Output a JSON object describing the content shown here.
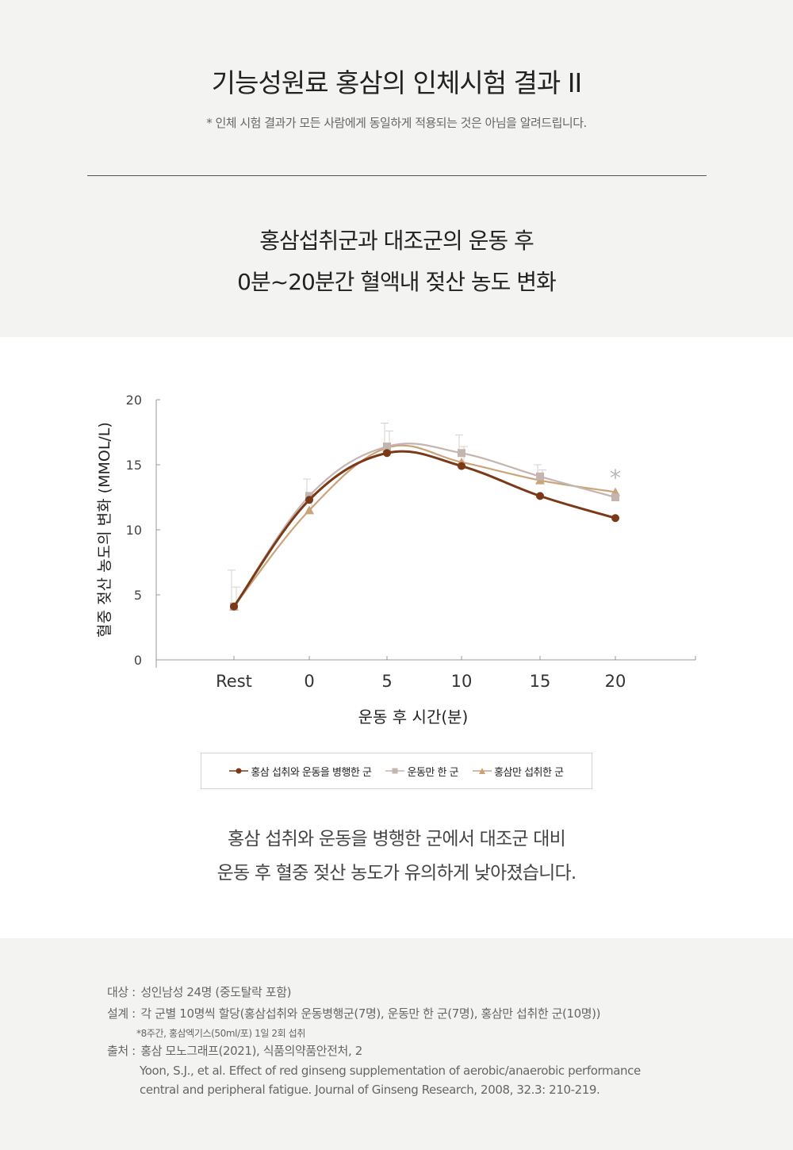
{
  "header": {
    "title": "기능성원료 홍삼의 인체시험 결과 II",
    "disclaimer": "* 인체 시험 결과가 모든 사람에게 동일하게 적용되는 것은 아님을 알려드립니다."
  },
  "subtitle": {
    "line1": "홍삼섭취군과 대조군의 운동 후",
    "line2": "0분~20분간 혈액내 젖산 농도 변화"
  },
  "chart_data": {
    "type": "line",
    "ylabel": "혈중 젖산 농도의 변화 (MMOL/L)",
    "xlabel": "운동 후 시간(분)",
    "categories": [
      "Rest",
      "0",
      "5",
      "10",
      "15",
      "20"
    ],
    "ylim": [
      0,
      20
    ],
    "yticks": [
      0,
      5,
      10,
      15,
      20
    ],
    "significance_marker": "*",
    "series": [
      {
        "name": "홍삼 섭취와 운동을 병행한 군",
        "marker": "circle",
        "color": "#7a3a18",
        "values": [
          4.1,
          12.3,
          15.9,
          14.9,
          12.6,
          10.9
        ],
        "error": [
          0,
          0,
          0,
          0,
          0,
          0
        ]
      },
      {
        "name": "운동만 한 군",
        "marker": "square",
        "color": "#c4b5b0",
        "values": [
          4.1,
          12.6,
          16.4,
          15.9,
          14.1,
          12.5
        ],
        "error": [
          2.8,
          1.3,
          1.8,
          1.4,
          0.9,
          0
        ]
      },
      {
        "name": "홍삼만 섭취한 군",
        "marker": "triangle",
        "color": "#c9a47a",
        "values": [
          4.1,
          11.5,
          16.3,
          15.2,
          13.8,
          12.9
        ],
        "error": [
          1.5,
          1.1,
          1.3,
          1.2,
          0.8,
          0
        ]
      }
    ]
  },
  "conclusion": {
    "line1": "홍삼 섭취와 운동을 병행한 군에서 대조군 대비",
    "line2": "운동 후 혈중 젖산 농도가 유의하게 낮아졌습니다."
  },
  "references": {
    "subject_label": "대상 :",
    "subject": "성인남성 24명 (중도탈락 포함)",
    "design_label": "설계 :",
    "design": "각 군별 10명씩 할당(홍삼섭취와 운동병행군(7명), 운동만 한 군(7명), 홍삼만 섭취한 군(10명))",
    "design_note": "*8주간, 홍삼엑기스(50ml/포) 1일 2회 섭취",
    "source_label": "출처 :",
    "source": "홍삼 모노그래프(2021), 식품의약품안전처, 2",
    "citation_line1": "Yoon, S.J., et al. Effect of red ginseng supplementation of aerobic/anaerobic performance",
    "citation_line2": "central and peripheral fatigue. Journal of Ginseng Research, 2008, 32.3: 210-219."
  }
}
